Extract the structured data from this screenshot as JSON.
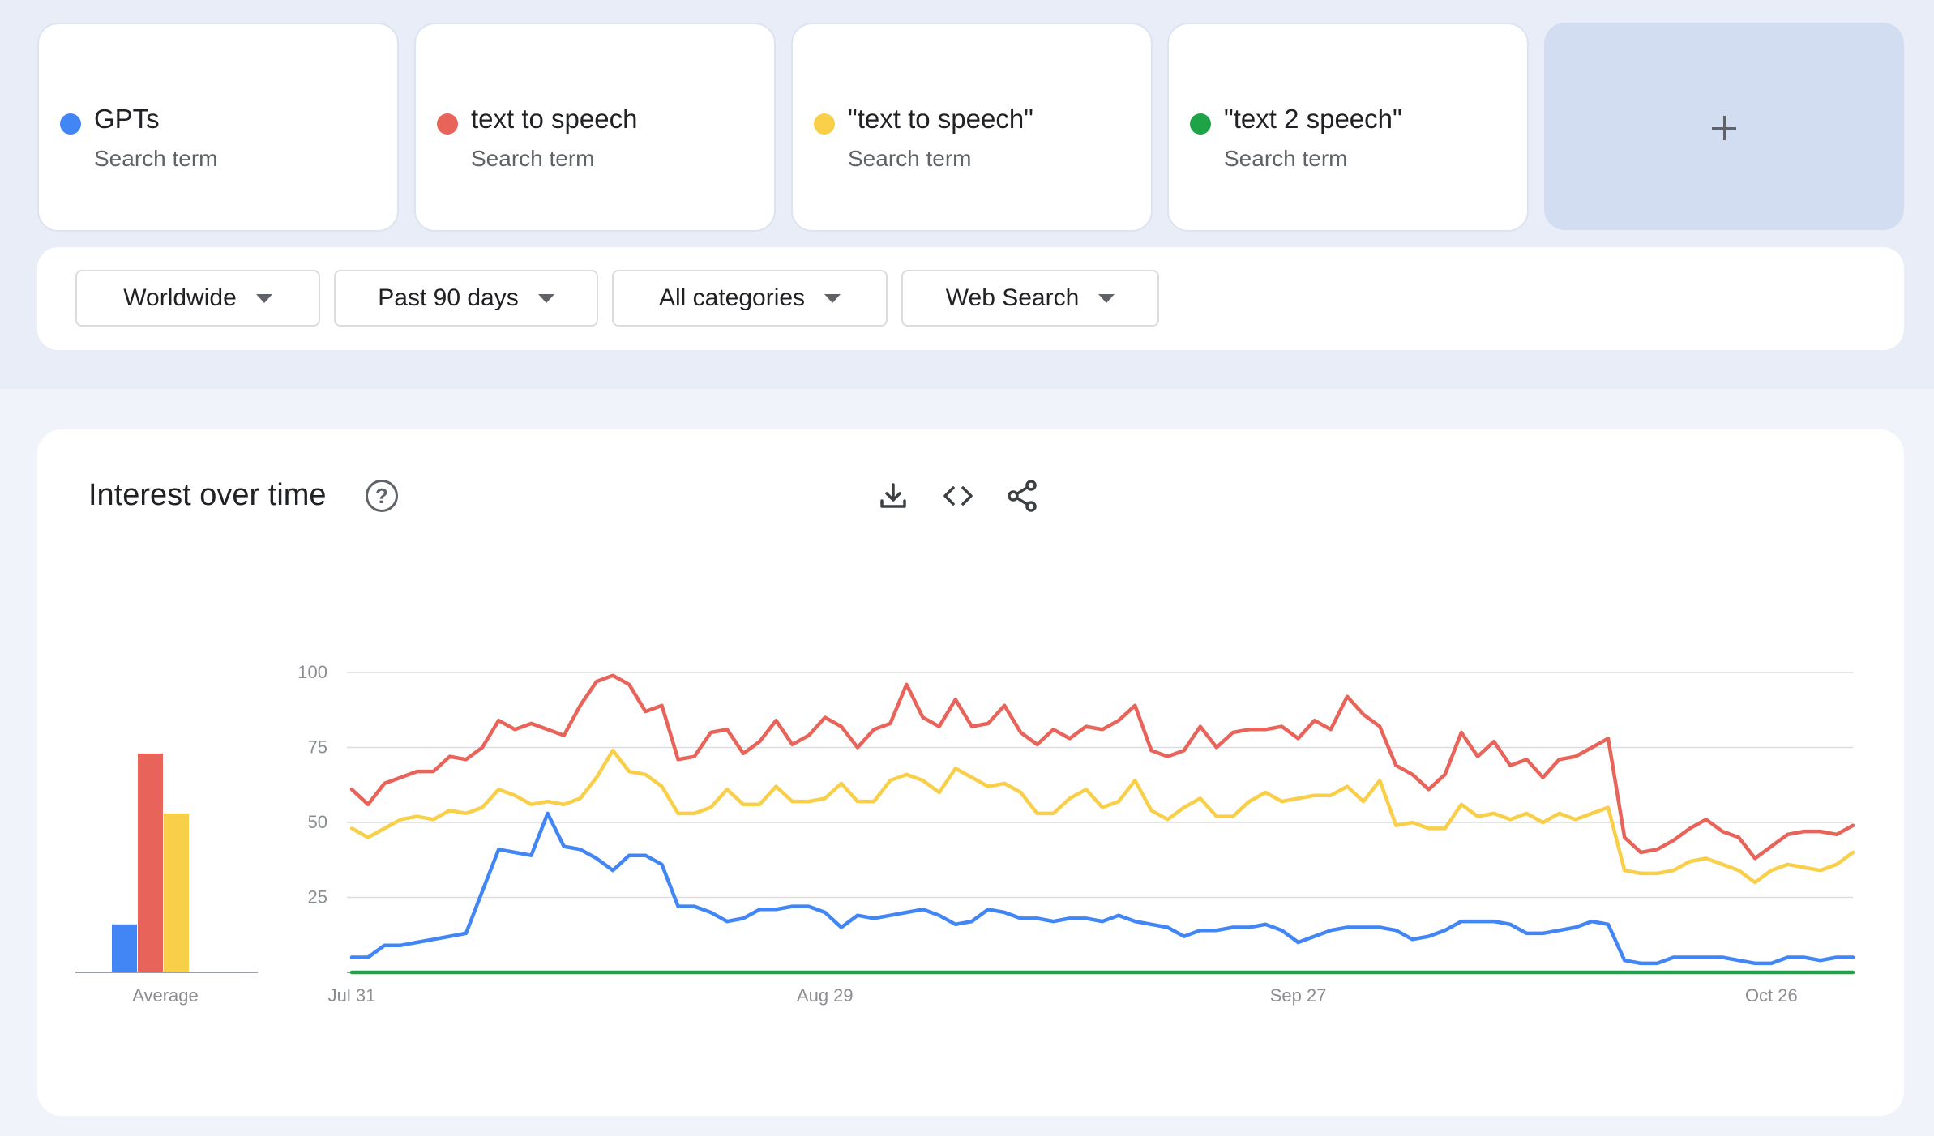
{
  "terms": [
    {
      "name": "GPTs",
      "type": "Search term",
      "color": "#4285f4"
    },
    {
      "name": "text to speech",
      "type": "Search term",
      "color": "#e8635a"
    },
    {
      "name": "\"text to speech\"",
      "type": "Search term",
      "color": "#f9cf4a"
    },
    {
      "name": "\"text 2 speech\"",
      "type": "Search term",
      "color": "#1ea446"
    }
  ],
  "add_term": {
    "icon": "plus-icon"
  },
  "filters": [
    {
      "label": "Worldwide"
    },
    {
      "label": "Past 90 days"
    },
    {
      "label": "All categories"
    },
    {
      "label": "Web Search"
    }
  ],
  "panel": {
    "title": "Interest over time",
    "help_icon": "help-icon",
    "help_glyph": "?",
    "tools": [
      "download-icon",
      "embed-icon",
      "share-icon"
    ]
  },
  "chart_data": {
    "type": "line",
    "ylim": [
      0,
      100
    ],
    "yticks": [
      25,
      50,
      75,
      100
    ],
    "grid": true,
    "x_tick_labels": [
      "Jul 31",
      "Aug 29",
      "Sep 27",
      "Oct 26"
    ],
    "x_tick_index": [
      0,
      29,
      58,
      87
    ],
    "series": [
      {
        "name": "GPTs",
        "color": "#4285f4",
        "values": [
          5,
          5,
          9,
          9,
          10,
          11,
          12,
          13,
          27,
          41,
          40,
          39,
          53,
          42,
          41,
          38,
          34,
          39,
          39,
          36,
          22,
          22,
          20,
          17,
          18,
          21,
          21,
          22,
          22,
          20,
          15,
          19,
          18,
          19,
          20,
          21,
          19,
          16,
          17,
          21,
          20,
          18,
          18,
          17,
          18,
          18,
          17,
          19,
          17,
          16,
          15,
          12,
          14,
          14,
          15,
          15,
          16,
          14,
          10,
          12,
          14,
          15,
          15,
          15,
          14,
          11,
          12,
          14,
          17,
          17,
          17,
          16,
          13,
          13,
          14,
          15,
          17,
          16,
          4,
          3,
          3,
          5,
          5,
          5,
          5,
          4,
          3,
          3,
          5,
          5,
          4,
          5,
          5
        ]
      },
      {
        "name": "text to speech",
        "color": "#e8635a",
        "values": [
          61,
          56,
          63,
          65,
          67,
          67,
          72,
          71,
          75,
          84,
          81,
          83,
          81,
          79,
          89,
          97,
          99,
          96,
          87,
          89,
          71,
          72,
          80,
          81,
          73,
          77,
          84,
          76,
          79,
          85,
          82,
          75,
          81,
          83,
          96,
          85,
          82,
          91,
          82,
          83,
          89,
          80,
          76,
          81,
          78,
          82,
          81,
          84,
          89,
          74,
          72,
          74,
          82,
          75,
          80,
          81,
          81,
          82,
          78,
          84,
          81,
          92,
          86,
          82,
          69,
          66,
          61,
          66,
          80,
          72,
          77,
          69,
          71,
          65,
          71,
          72,
          75,
          78,
          45,
          40,
          41,
          44,
          48,
          51,
          47,
          45,
          38,
          42,
          46,
          47,
          47,
          46,
          49
        ]
      },
      {
        "name": "\"text to speech\"",
        "color": "#f9cf4a",
        "values": [
          48,
          45,
          48,
          51,
          52,
          51,
          54,
          53,
          55,
          61,
          59,
          56,
          57,
          56,
          58,
          65,
          74,
          67,
          66,
          62,
          53,
          53,
          55,
          61,
          56,
          56,
          62,
          57,
          57,
          58,
          63,
          57,
          57,
          64,
          66,
          64,
          60,
          68,
          65,
          62,
          63,
          60,
          53,
          53,
          58,
          61,
          55,
          57,
          64,
          54,
          51,
          55,
          58,
          52,
          52,
          57,
          60,
          57,
          58,
          59,
          59,
          62,
          57,
          64,
          49,
          50,
          48,
          48,
          56,
          52,
          53,
          51,
          53,
          50,
          53,
          51,
          53,
          55,
          34,
          33,
          33,
          34,
          37,
          38,
          36,
          34,
          30,
          34,
          36,
          35,
          34,
          36,
          40
        ]
      },
      {
        "name": "\"text 2 speech\"",
        "color": "#1ea446",
        "values": [
          0,
          0,
          0,
          0,
          0,
          0,
          0,
          0,
          0,
          0,
          0,
          0,
          0,
          0,
          0,
          0,
          0,
          0,
          0,
          0,
          0,
          0,
          0,
          0,
          0,
          0,
          0,
          0,
          0,
          0,
          0,
          0,
          0,
          0,
          0,
          0,
          0,
          0,
          0,
          0,
          0,
          0,
          0,
          0,
          0,
          0,
          0,
          0,
          0,
          0,
          0,
          0,
          0,
          0,
          0,
          0,
          0,
          0,
          0,
          0,
          0,
          0,
          0,
          0,
          0,
          0,
          0,
          0,
          0,
          0,
          0,
          0,
          0,
          0,
          0,
          0,
          0,
          0,
          0,
          0,
          0,
          0,
          0,
          0,
          0,
          0,
          0,
          0,
          0,
          0,
          0,
          0,
          0
        ]
      }
    ],
    "average": {
      "label": "Average",
      "values": [
        {
          "name": "GPTs",
          "value": 16,
          "color": "#4285f4"
        },
        {
          "name": "text to speech",
          "value": 73,
          "color": "#e8635a"
        },
        {
          "name": "\"text to speech\"",
          "value": 53,
          "color": "#f9cf4a"
        },
        {
          "name": "\"text 2 speech\"",
          "value": 0,
          "color": "#1ea446"
        }
      ]
    }
  }
}
